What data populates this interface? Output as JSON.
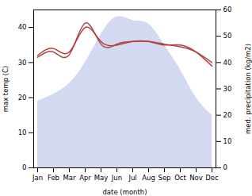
{
  "chart_data": {
    "type": "line",
    "categories": [
      "Jan",
      "Feb",
      "Mar",
      "Apr",
      "May",
      "Jun",
      "Jul",
      "Aug",
      "Sep",
      "Oct",
      "Nov",
      "Dec"
    ],
    "series": [
      {
        "type": "area",
        "color": "#adb9e3",
        "values": [
          19,
          21,
          24,
          30,
          38,
          43,
          42,
          41,
          35,
          28,
          20,
          15
        ]
      },
      {
        "type": "line",
        "color": "#9b5060",
        "axis": "y2",
        "values": [
          42,
          44,
          43,
          55,
          47,
          47,
          48,
          48,
          47,
          46,
          44,
          40
        ]
      },
      {
        "type": "line",
        "color": "#c0392b",
        "values": [
          32,
          34,
          33,
          40,
          36,
          35,
          36,
          36,
          35,
          35,
          33,
          29
        ]
      }
    ],
    "xlabel": "date (month)",
    "ylabel": "max temp (C)",
    "y2label": "med. precipitation (kg/m2)",
    "ylim": [
      0,
      45
    ],
    "yticks": [
      0,
      10,
      20,
      30,
      40
    ],
    "y2lim": [
      0,
      60
    ],
    "y2ticks": [
      0,
      10,
      20,
      30,
      40,
      50,
      60
    ]
  }
}
